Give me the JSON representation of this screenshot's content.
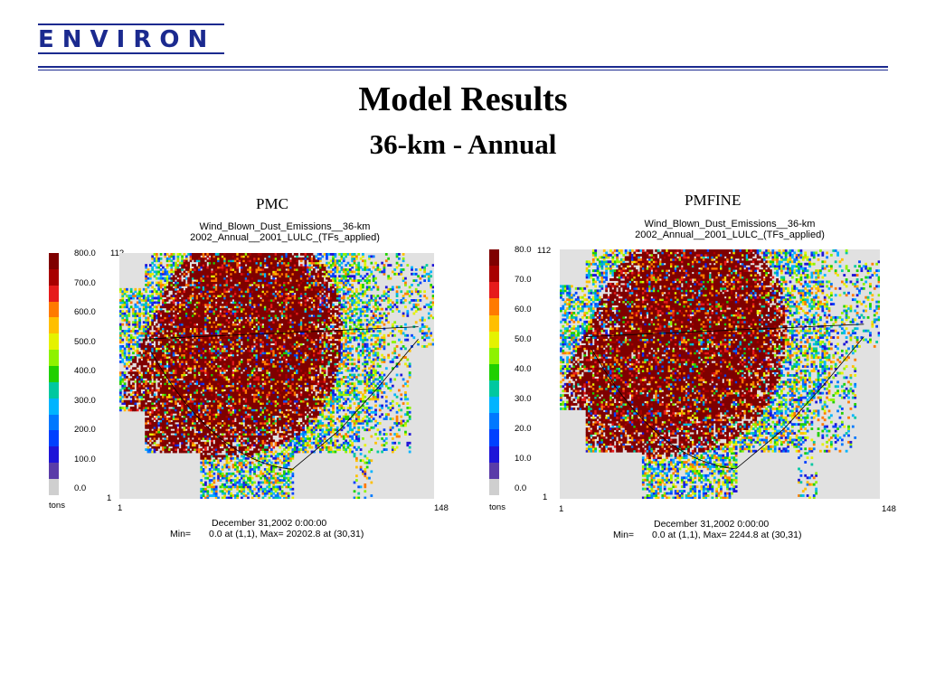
{
  "logo": {
    "text": "ENVIRON"
  },
  "slide": {
    "title": "Model Results",
    "subtitle": "36-km - Annual"
  },
  "colors": {
    "brand": "#1b2a8f"
  },
  "colorbar_colors": [
    "#7f0000",
    "#a80000",
    "#e61b1b",
    "#ff7a00",
    "#ffbf00",
    "#e5f200",
    "#8ef200",
    "#20d000",
    "#00c8a0",
    "#00b4ff",
    "#0078ff",
    "#0040ff",
    "#1e14d8",
    "#5a3ca8",
    "#cfcfcf"
  ],
  "panels": [
    {
      "label": "PMC",
      "plot_title_1": "Wind_Blown_Dust_Emissions__36-km",
      "plot_title_2": "2002_Annual__2001_LULC_(TFs_applied)",
      "y_top": "112",
      "y_bottom": "1",
      "x_left": "1",
      "x_right": "148",
      "ticks": [
        "800.0",
        "700.0",
        "600.0",
        "500.0",
        "400.0",
        "300.0",
        "200.0",
        "100.0",
        "0.0"
      ],
      "units": "tons",
      "date": "December 31,2002 0:00:00",
      "min_label": "Min=",
      "stats": "0.0 at (1,1), Max= 20202.8 at (30,31)"
    },
    {
      "label": "PMFINE",
      "plot_title_1": "Wind_Blown_Dust_Emissions__36-km",
      "plot_title_2": "2002_Annual__2001_LULC_(TFs_applied)",
      "y_top": "112",
      "y_bottom": "1",
      "x_left": "1",
      "x_right": "148",
      "ticks": [
        "80.0",
        "70.0",
        "60.0",
        "50.0",
        "40.0",
        "30.0",
        "20.0",
        "10.0",
        "0.0"
      ],
      "units": "tons",
      "date": "December 31,2002 0:00:00",
      "min_label": "Min=",
      "stats": "0.0 at (1,1), Max=  2244.8 at (30,31)"
    }
  ]
}
